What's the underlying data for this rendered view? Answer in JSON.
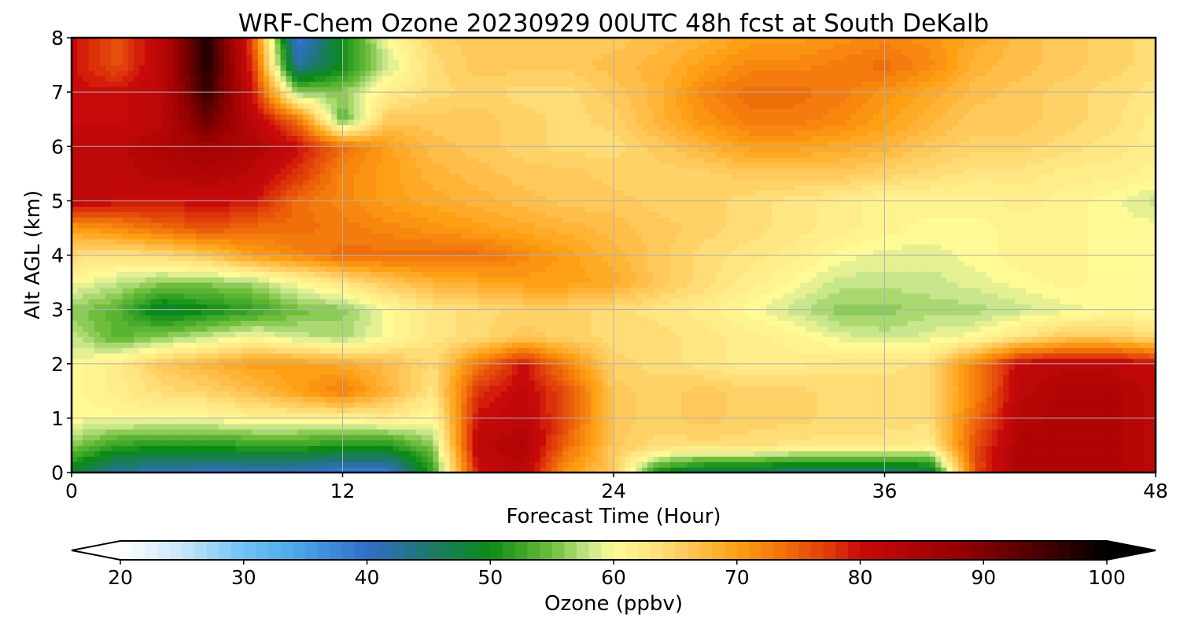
{
  "chart_data": {
    "type": "heatmap",
    "title": "WRF-Chem Ozone  20230929 00UTC 48h fcst at South DeKalb",
    "xlabel": "Forecast Time (Hour)",
    "ylabel": "Alt AGL (km)",
    "xlim": [
      0,
      48
    ],
    "ylim": [
      0,
      8
    ],
    "x_ticks": [
      "0",
      "12",
      "24",
      "36",
      "48"
    ],
    "y_ticks": [
      "0",
      "1",
      "2",
      "3",
      "4",
      "5",
      "6",
      "7",
      "8"
    ],
    "grid": true,
    "colorbar": {
      "label": "Ozone  (ppbv)",
      "min": 20,
      "max": 100,
      "ticks": [
        "20",
        "30",
        "40",
        "50",
        "60",
        "70",
        "80",
        "90",
        "100"
      ],
      "extend": "both"
    },
    "x": [
      0,
      2,
      4,
      6,
      8,
      10,
      12,
      14,
      16,
      18,
      20,
      22,
      24,
      26,
      28,
      30,
      32,
      34,
      36,
      38,
      40,
      42,
      44,
      46,
      48
    ],
    "y": [
      0,
      0.5,
      1,
      1.5,
      2,
      2.5,
      3,
      3.5,
      4,
      4.5,
      5,
      5.5,
      6,
      6.5,
      7,
      7.5,
      8
    ],
    "z": [
      [
        48,
        42,
        41,
        40,
        40,
        40,
        38,
        38,
        52,
        80,
        82,
        70,
        66,
        50,
        46,
        46,
        44,
        44,
        44,
        46,
        76,
        84,
        84,
        84,
        82
      ],
      [
        56,
        52,
        51,
        51,
        52,
        52,
        51,
        51,
        56,
        82,
        84,
        74,
        66,
        64,
        64,
        64,
        63,
        63,
        63,
        62,
        76,
        84,
        84,
        84,
        82
      ],
      [
        60,
        60,
        60,
        60,
        61,
        61,
        61,
        62,
        60,
        80,
        82,
        76,
        66,
        65,
        66,
        65,
        65,
        64,
        64,
        64,
        74,
        83,
        84,
        84,
        82
      ],
      [
        60,
        62,
        64,
        65,
        67,
        70,
        73,
        68,
        63,
        78,
        81,
        76,
        66,
        65,
        66,
        65,
        65,
        64,
        64,
        64,
        72,
        82,
        84,
        84,
        82
      ],
      [
        60,
        62,
        66,
        68,
        70,
        70,
        69,
        67,
        64,
        73,
        80,
        72,
        65,
        64,
        63,
        62,
        62,
        63,
        63,
        64,
        72,
        81,
        82,
        82,
        80
      ],
      [
        58,
        54,
        56,
        58,
        60,
        58,
        57,
        60,
        63,
        64,
        66,
        65,
        64,
        64,
        63,
        62,
        61,
        59,
        58,
        59,
        60,
        63,
        66,
        66,
        64
      ],
      [
        56,
        54,
        48,
        50,
        52,
        55,
        56,
        60,
        63,
        64,
        65,
        65,
        64,
        63,
        62,
        60,
        58,
        56,
        56,
        57,
        57,
        58,
        59,
        60,
        60
      ],
      [
        60,
        58,
        56,
        56,
        57,
        60,
        63,
        66,
        68,
        69,
        70,
        70,
        69,
        66,
        64,
        62,
        60,
        58,
        58,
        58,
        59,
        60,
        61,
        60,
        60
      ],
      [
        64,
        63,
        64,
        66,
        70,
        72,
        74,
        74,
        74,
        74,
        72,
        70,
        68,
        66,
        64,
        63,
        62,
        60,
        59,
        59,
        60,
        61,
        61,
        60,
        60
      ],
      [
        70,
        72,
        74,
        76,
        74,
        74,
        73,
        72,
        71,
        70,
        69,
        68,
        67,
        66,
        65,
        64,
        63,
        62,
        61,
        60,
        60,
        61,
        61,
        60,
        60
      ],
      [
        82,
        80,
        80,
        80,
        80,
        74,
        72,
        70,
        69,
        68,
        67,
        66,
        66,
        65,
        65,
        64,
        63,
        62,
        61,
        61,
        61,
        62,
        61,
        60,
        58
      ],
      [
        82,
        82,
        83,
        84,
        82,
        78,
        72,
        70,
        68,
        67,
        66,
        66,
        65,
        65,
        65,
        66,
        66,
        66,
        65,
        64,
        63,
        63,
        62,
        62,
        61
      ],
      [
        82,
        82,
        84,
        86,
        84,
        80,
        74,
        70,
        67,
        66,
        65,
        64,
        64,
        66,
        68,
        70,
        70,
        69,
        68,
        66,
        65,
        65,
        64,
        63,
        62
      ],
      [
        80,
        80,
        82,
        92,
        82,
        74,
        54,
        66,
        66,
        66,
        65,
        64,
        65,
        68,
        71,
        73,
        73,
        72,
        70,
        68,
        66,
        66,
        65,
        64,
        62
      ],
      [
        80,
        80,
        82,
        96,
        80,
        56,
        56,
        62,
        64,
        65,
        64,
        64,
        66,
        68,
        72,
        74,
        74,
        73,
        71,
        69,
        67,
        66,
        65,
        64,
        63
      ],
      [
        80,
        76,
        82,
        98,
        78,
        42,
        50,
        58,
        64,
        66,
        66,
        66,
        67,
        68,
        70,
        72,
        72,
        73,
        74,
        72,
        68,
        67,
        66,
        65,
        64
      ],
      [
        80,
        76,
        82,
        98,
        76,
        38,
        50,
        60,
        65,
        66,
        66,
        66,
        66,
        67,
        68,
        70,
        70,
        71,
        72,
        71,
        69,
        67,
        66,
        65,
        64
      ]
    ]
  }
}
